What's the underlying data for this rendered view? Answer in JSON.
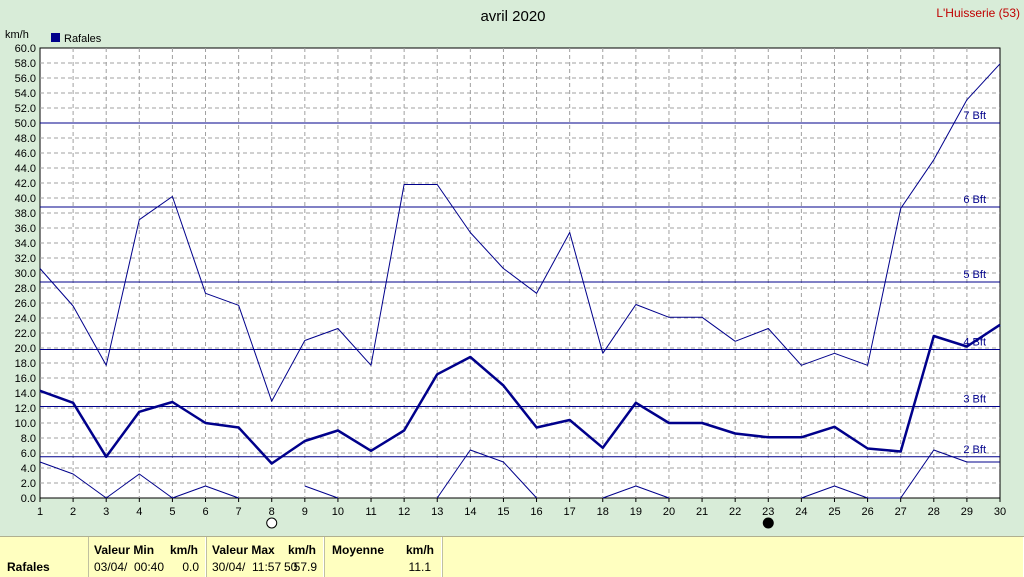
{
  "chart_data": {
    "type": "line",
    "title": "avril 2020",
    "station": "L'Huisserie (53)",
    "ylabel": "km/h",
    "legend": {
      "label": "Rafales",
      "placement": "top-left"
    },
    "ylim": [
      0,
      60
    ],
    "ytick_step": 2,
    "x": [
      1,
      2,
      3,
      4,
      5,
      6,
      7,
      8,
      9,
      10,
      11,
      12,
      13,
      14,
      15,
      16,
      17,
      18,
      19,
      20,
      21,
      22,
      23,
      24,
      25,
      26,
      27,
      28,
      29,
      30
    ],
    "series": [
      {
        "name": "Rafales",
        "role": "mean",
        "color": "#00008b",
        "values": [
          14.3,
          12.7,
          5.5,
          11.5,
          12.8,
          10.0,
          9.4,
          4.6,
          7.6,
          9.0,
          6.3,
          9.0,
          16.5,
          18.8,
          15.0,
          9.4,
          10.4,
          6.7,
          12.7,
          10.0,
          10.0,
          8.6,
          8.1,
          8.1,
          9.5,
          6.6,
          6.2,
          21.6,
          20.2,
          23.1
        ]
      },
      {
        "role": "max",
        "color": "#00008b",
        "values": [
          30.6,
          25.6,
          17.7,
          37.1,
          40.2,
          27.3,
          25.7,
          12.9,
          21.0,
          22.6,
          17.7,
          41.8,
          41.8,
          35.4,
          30.6,
          27.3,
          35.4,
          19.3,
          25.8,
          24.1,
          24.1,
          20.9,
          22.6,
          17.7,
          19.3,
          17.7,
          38.6,
          45.1,
          53.1,
          57.9
        ]
      },
      {
        "role": "min",
        "color": "#00008b",
        "values": [
          4.8,
          3.2,
          0.0,
          3.2,
          0.0,
          1.6,
          0.0,
          null,
          1.6,
          0.0,
          null,
          null,
          0.0,
          6.4,
          4.8,
          0.0,
          null,
          0.0,
          1.6,
          0.0,
          null,
          null,
          null,
          0.0,
          1.6,
          0.0,
          0.0,
          6.4,
          4.8,
          4.8
        ]
      }
    ],
    "beaufort_lines": [
      {
        "label": "2 Bft",
        "value": 5.5
      },
      {
        "label": "3 Bft",
        "value": 12.2
      },
      {
        "label": "4 Bft",
        "value": 19.8
      },
      {
        "label": "5 Bft",
        "value": 28.8
      },
      {
        "label": "6 Bft",
        "value": 38.8
      },
      {
        "label": "7 Bft",
        "value": 50.0
      }
    ],
    "moon_phases": [
      {
        "day": 8,
        "phase": "full-moon-icon"
      },
      {
        "day": 23,
        "phase": "new-moon-icon"
      }
    ],
    "grid": true
  },
  "footer": {
    "row_label": "Rafales",
    "min": {
      "header": "Valeur Min",
      "unit": "km/h",
      "date": "03/04/",
      "time": "00:40",
      "value": "0.0"
    },
    "max": {
      "header": "Valeur Max",
      "unit": "km/h",
      "date": "30/04/",
      "time": "11:57",
      "time_end": "50",
      "value": "57.9"
    },
    "mean": {
      "header": "Moyenne",
      "unit": "km/h",
      "value": "11.1"
    }
  },
  "colors": {
    "background": "#d8ecd8",
    "plot": "#ffffff",
    "series": "#00008b",
    "station": "#c00000",
    "footer": "#ffffc0"
  }
}
